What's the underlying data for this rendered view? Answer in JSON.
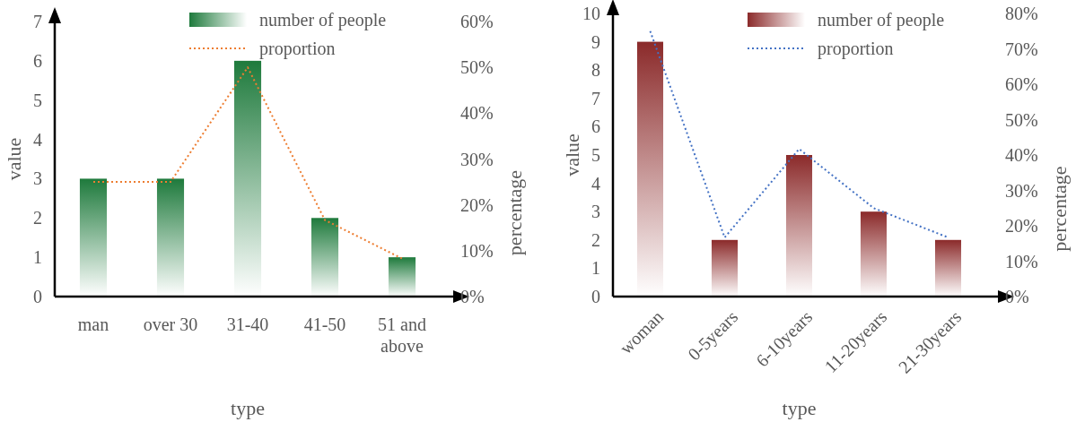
{
  "chart_data": [
    {
      "type": "bar",
      "xlabel": "type",
      "ylabel": "value",
      "y2label": "percentage",
      "categories": [
        "man",
        "over 30",
        "31-40",
        "41-50",
        "51 and above"
      ],
      "ylim": [
        0,
        7
      ],
      "yticks": [
        0,
        1,
        2,
        3,
        4,
        5,
        6,
        7
      ],
      "y2lim": [
        0,
        60
      ],
      "y2ticks": [
        {
          "value": 0,
          "label": "0%"
        },
        {
          "value": 10,
          "label": "10%"
        },
        {
          "value": 20,
          "label": "20%"
        },
        {
          "value": 30,
          "label": "30%"
        },
        {
          "value": 40,
          "label": "40%"
        },
        {
          "value": 50,
          "label": "50%"
        },
        {
          "value": 60,
          "label": "60%"
        }
      ],
      "legend": "top",
      "series": [
        {
          "name": "number of people",
          "color": "#1e7a3c",
          "values": [
            3,
            3,
            6,
            2,
            1
          ]
        },
        {
          "name": "proportion",
          "type": "line",
          "axis": "y2",
          "color": "#ed7d31",
          "line_style": "dotted",
          "values": [
            25,
            25,
            50,
            16.7,
            8.3
          ]
        }
      ]
    },
    {
      "type": "bar",
      "xlabel": "type",
      "ylabel": "value",
      "y2label": "percentage",
      "categories": [
        "woman",
        "0-5years",
        "6-10years",
        "11-20years",
        "21-30years"
      ],
      "ylim": [
        0,
        10
      ],
      "yticks": [
        0,
        1,
        2,
        3,
        4,
        5,
        6,
        7,
        8,
        9,
        10
      ],
      "y2lim": [
        0,
        80
      ],
      "y2ticks": [
        {
          "value": 0,
          "label": "0%"
        },
        {
          "value": 10,
          "label": "10%"
        },
        {
          "value": 20,
          "label": "20%"
        },
        {
          "value": 30,
          "label": "30%"
        },
        {
          "value": 40,
          "label": "40%"
        },
        {
          "value": 50,
          "label": "50%"
        },
        {
          "value": 60,
          "label": "60%"
        },
        {
          "value": 70,
          "label": "70%"
        },
        {
          "value": 80,
          "label": "80%"
        }
      ],
      "legend": "top",
      "series": [
        {
          "name": "number of people",
          "color": "#8b2a2a",
          "values": [
            9,
            2,
            5,
            3,
            2
          ]
        },
        {
          "name": "proportion",
          "type": "line",
          "axis": "y2",
          "color": "#4472c4",
          "line_style": "dotted",
          "values": [
            75,
            16.7,
            41.7,
            25,
            16.7
          ]
        }
      ]
    }
  ]
}
